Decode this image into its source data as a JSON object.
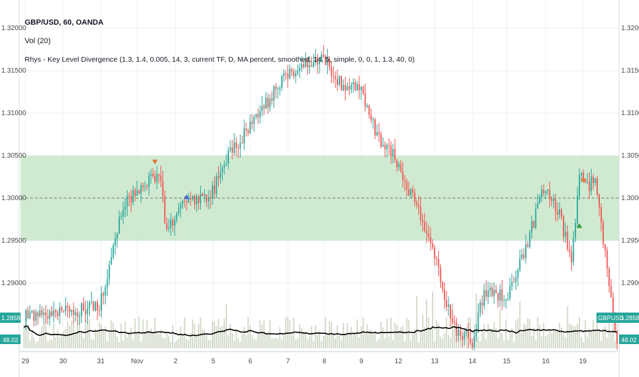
{
  "chart_data": {
    "type": "candlestick",
    "symbol_line": "GBP/USD, 60, OANDA",
    "volume_label": "Vol (20)",
    "indicator_label": "Rhys - Key Level Divergence (1.3, 1.4, 0.005, 14, 3, current TF, D, MA percent, smoothed, 14, 5, simple, 0, 0, 1, 1.3, 40, 0)",
    "ylim": [
      1.2868,
      1.3224
    ],
    "y_ticks": [
      "1.32000",
      "1.31500",
      "1.31000",
      "1.30500",
      "1.30000",
      "1.29500",
      "1.29000"
    ],
    "x_ticks": [
      "29",
      "30",
      "31",
      "Nov",
      "2",
      "5",
      "6",
      "7",
      "8",
      "9",
      "12",
      "13",
      "14",
      "15",
      "16",
      "19"
    ],
    "key_level": 1.3,
    "key_band": [
      1.295,
      1.305
    ],
    "price_badge_left": "1.28584",
    "price_badge_right_symbol": "GBPUSD",
    "price_badge_right_value": "1.28584",
    "volume_badge": "48.02",
    "colors": {
      "up": "#26a69a",
      "down": "#ef5350",
      "band": "#c8e6c9",
      "volume": "#c7cfb7",
      "ma": "#000000",
      "badge": "#26a69a"
    },
    "anchor_closes": [
      [
        0,
        1.286
      ],
      [
        38,
        1.2872
      ],
      [
        50,
        1.299
      ],
      [
        56,
        1.3008
      ],
      [
        68,
        1.3031
      ],
      [
        72,
        1.296
      ],
      [
        82,
        1.2998
      ],
      [
        94,
        1.3002
      ],
      [
        104,
        1.3055
      ],
      [
        116,
        1.3088
      ],
      [
        130,
        1.314
      ],
      [
        142,
        1.3158
      ],
      [
        150,
        1.3168
      ],
      [
        160,
        1.3132
      ],
      [
        170,
        1.3128
      ],
      [
        178,
        1.3072
      ],
      [
        186,
        1.305
      ],
      [
        196,
        1.3
      ],
      [
        206,
        1.294
      ],
      [
        216,
        1.285
      ],
      [
        226,
        1.283
      ],
      [
        232,
        1.289
      ],
      [
        244,
        1.2885
      ],
      [
        254,
        1.295
      ],
      [
        262,
        1.301
      ],
      [
        270,
        1.298
      ],
      [
        276,
        1.2925
      ],
      [
        280,
        1.3025
      ],
      [
        284,
        1.3015
      ],
      [
        288,
        1.302
      ],
      [
        298,
        1.285
      ]
    ],
    "divergence_markers": [
      {
        "bar": 66,
        "type": "bearish",
        "price": 1.3042
      },
      {
        "bar": 82,
        "type": "bullish",
        "price": 1.3002
      },
      {
        "bar": 282,
        "type": "bearish",
        "price": 1.302
      },
      {
        "bar": 280,
        "type": "bullish",
        "price": 1.2968
      }
    ]
  }
}
